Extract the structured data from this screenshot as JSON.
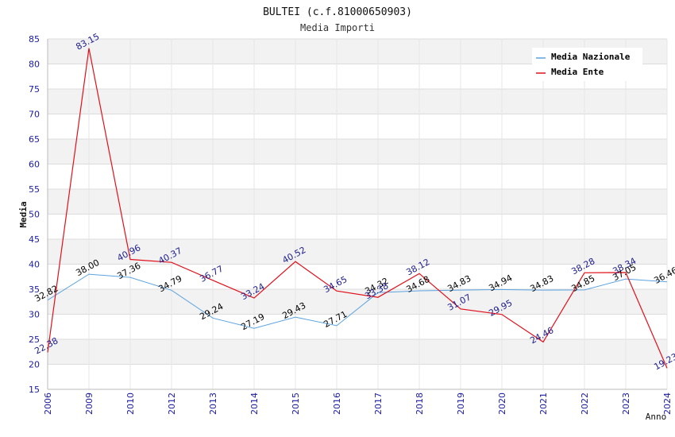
{
  "chart_data": {
    "type": "line",
    "title": "BULTEI (c.f.81000650903)",
    "subtitle": "Media Importi",
    "xlabel": "Anno",
    "ylabel": "Media",
    "ylim": [
      15,
      85
    ],
    "yticks": [
      15,
      20,
      25,
      30,
      35,
      40,
      45,
      50,
      55,
      60,
      65,
      70,
      75,
      80,
      85
    ],
    "categories": [
      "2006",
      "2009",
      "2010",
      "2012",
      "2013",
      "2014",
      "2015",
      "2016",
      "2017",
      "2018",
      "2019",
      "2020",
      "2021",
      "2022",
      "2023",
      "2024"
    ],
    "legend_position": "top-right",
    "series": [
      {
        "name": "Media Nazionale",
        "color": "#5ba3e0",
        "label_color": "#000000",
        "values": [
          32.82,
          38.0,
          37.36,
          34.79,
          29.24,
          27.19,
          29.43,
          27.71,
          34.32,
          34.68,
          34.83,
          34.94,
          34.83,
          34.85,
          37.05,
          36.46
        ],
        "labels": [
          "32.82",
          "38.00",
          "37.36",
          "34.79",
          "29.24",
          "27.19",
          "29.43",
          "27.71",
          "34.32",
          "34.68",
          "34.83",
          "34.94",
          "34.83",
          "34.85",
          "37.05",
          "36.46"
        ]
      },
      {
        "name": "Media Ente",
        "color": "#e0101a",
        "label_color": "#1a1a8c",
        "values": [
          22.38,
          83.15,
          40.96,
          40.37,
          36.77,
          33.24,
          40.52,
          34.65,
          33.38,
          38.12,
          31.07,
          29.95,
          24.46,
          38.28,
          38.34,
          19.23
        ],
        "labels": [
          "22.38",
          "83.15",
          "40.96",
          "40.37",
          "36.77",
          "33.24",
          "40.52",
          "34.65",
          "33.38",
          "38.12",
          "31.07",
          "29.95",
          "24.46",
          "38.28",
          "38.34",
          "19.23"
        ]
      }
    ]
  }
}
